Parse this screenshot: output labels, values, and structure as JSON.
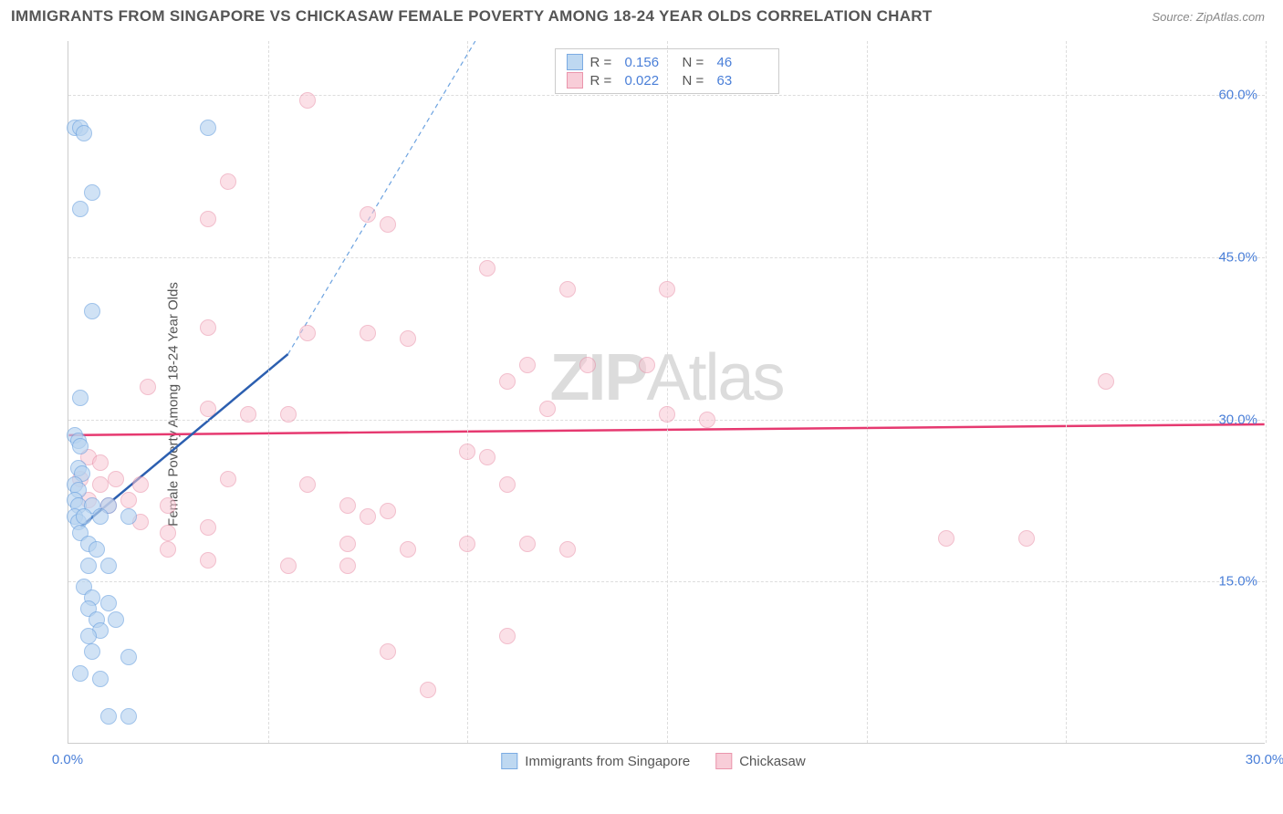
{
  "title": "IMMIGRANTS FROM SINGAPORE VS CHICKASAW FEMALE POVERTY AMONG 18-24 YEAR OLDS CORRELATION CHART",
  "source": "Source: ZipAtlas.com",
  "watermark_a": "ZIP",
  "watermark_b": "Atlas",
  "chart": {
    "type": "scatter",
    "xlim": [
      0,
      30
    ],
    "ylim": [
      0,
      65
    ],
    "xticks": [
      0,
      30
    ],
    "ytick_labels": [
      "15.0%",
      "30.0%",
      "45.0%",
      "60.0%"
    ],
    "ytick_values": [
      15,
      30,
      45,
      60
    ],
    "xtick_labels": [
      "0.0%",
      "30.0%"
    ],
    "y_label": "Female Poverty Among 18-24 Year Olds",
    "grid_color": "#dddddd",
    "axis_color": "#cccccc",
    "x_gridlines": [
      5,
      10,
      15,
      20,
      25,
      30
    ],
    "background_color": "#ffffff",
    "tick_color": "#4a7fd8",
    "point_radius": 9,
    "point_stroke_width": 1.5
  },
  "series": {
    "s1": {
      "label": "Immigrants from Singapore",
      "fill": "#b8d4f0",
      "stroke": "#6da3e0",
      "fill_opacity": 0.65,
      "R": "0.156",
      "N": "46",
      "trend": {
        "x1": 0.3,
        "y1": 20,
        "x2": 5.5,
        "y2": 36,
        "color": "#2c5fb0",
        "width": 2.5,
        "dash": "none"
      },
      "trend_ext": {
        "x1": 5.5,
        "y1": 36,
        "x2": 10.2,
        "y2": 65,
        "color": "#6da3e0",
        "width": 1.2,
        "dash": "5,4"
      },
      "points": [
        [
          0.15,
          57
        ],
        [
          0.3,
          57
        ],
        [
          0.4,
          56.5
        ],
        [
          3.5,
          57
        ],
        [
          0.6,
          51
        ],
        [
          0.3,
          49.5
        ],
        [
          0.6,
          40
        ],
        [
          0.3,
          32
        ],
        [
          0.15,
          28.5
        ],
        [
          0.25,
          28
        ],
        [
          0.3,
          27.5
        ],
        [
          0.25,
          25.5
        ],
        [
          0.35,
          25
        ],
        [
          0.15,
          24
        ],
        [
          0.25,
          23.5
        ],
        [
          0.15,
          22.5
        ],
        [
          0.25,
          22
        ],
        [
          0.6,
          22
        ],
        [
          1.0,
          22
        ],
        [
          0.15,
          21
        ],
        [
          0.25,
          20.5
        ],
        [
          0.4,
          21
        ],
        [
          0.8,
          21
        ],
        [
          1.5,
          21
        ],
        [
          0.3,
          19.5
        ],
        [
          0.5,
          18.5
        ],
        [
          0.7,
          18
        ],
        [
          0.5,
          16.5
        ],
        [
          1.0,
          16.5
        ],
        [
          0.4,
          14.5
        ],
        [
          0.6,
          13.5
        ],
        [
          1.0,
          13
        ],
        [
          0.5,
          12.5
        ],
        [
          0.7,
          11.5
        ],
        [
          1.2,
          11.5
        ],
        [
          0.8,
          10.5
        ],
        [
          0.5,
          10
        ],
        [
          0.6,
          8.5
        ],
        [
          1.5,
          8
        ],
        [
          0.3,
          6.5
        ],
        [
          0.8,
          6
        ],
        [
          1.0,
          2.5
        ],
        [
          1.5,
          2.5
        ]
      ]
    },
    "s2": {
      "label": "Chickasaw",
      "fill": "#f8c8d4",
      "stroke": "#e88aa4",
      "fill_opacity": 0.55,
      "R": "0.022",
      "N": "63",
      "trend": {
        "x1": 0,
        "y1": 28.5,
        "x2": 30,
        "y2": 29.5,
        "color": "#e63970",
        "width": 2.5,
        "dash": "none"
      },
      "points": [
        [
          6,
          59.5
        ],
        [
          4,
          52
        ],
        [
          3.5,
          48.5
        ],
        [
          7.5,
          49
        ],
        [
          8,
          48
        ],
        [
          10.5,
          44
        ],
        [
          12.5,
          42
        ],
        [
          15,
          42
        ],
        [
          3.5,
          38.5
        ],
        [
          6,
          38
        ],
        [
          7.5,
          38
        ],
        [
          8.5,
          37.5
        ],
        [
          11.5,
          35
        ],
        [
          13,
          35
        ],
        [
          14.5,
          35
        ],
        [
          2,
          33
        ],
        [
          11,
          33.5
        ],
        [
          26,
          33.5
        ],
        [
          3.5,
          31
        ],
        [
          4.5,
          30.5
        ],
        [
          5.5,
          30.5
        ],
        [
          12,
          31
        ],
        [
          15,
          30.5
        ],
        [
          16,
          30
        ],
        [
          0.5,
          26.5
        ],
        [
          0.8,
          26
        ],
        [
          10,
          27
        ],
        [
          10.5,
          26.5
        ],
        [
          0.3,
          24.5
        ],
        [
          0.8,
          24
        ],
        [
          1.2,
          24.5
        ],
        [
          1.8,
          24
        ],
        [
          4,
          24.5
        ],
        [
          6,
          24
        ],
        [
          11,
          24
        ],
        [
          0.5,
          22.5
        ],
        [
          1.0,
          22
        ],
        [
          1.5,
          22.5
        ],
        [
          2.5,
          22
        ],
        [
          7,
          22
        ],
        [
          8,
          21.5
        ],
        [
          7.5,
          21
        ],
        [
          1.8,
          20.5
        ],
        [
          2.5,
          19.5
        ],
        [
          3.5,
          20
        ],
        [
          2.5,
          18
        ],
        [
          7,
          18.5
        ],
        [
          8.5,
          18
        ],
        [
          10,
          18.5
        ],
        [
          11.5,
          18.5
        ],
        [
          12.5,
          18
        ],
        [
          22,
          19
        ],
        [
          24,
          19
        ],
        [
          3.5,
          17
        ],
        [
          5.5,
          16.5
        ],
        [
          7,
          16.5
        ],
        [
          11,
          10
        ],
        [
          8,
          8.5
        ],
        [
          9,
          5
        ]
      ]
    }
  },
  "legend_top": {
    "r_label": "R  =",
    "n_label": "N  ="
  }
}
